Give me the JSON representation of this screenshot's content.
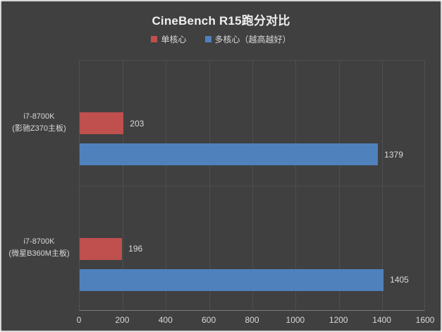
{
  "chart_data": {
    "type": "bar",
    "orientation": "horizontal",
    "title": "CineBench R15跑分对比",
    "legend_position": "top-center",
    "grid": true,
    "data_labels": true,
    "categories": [
      {
        "line1": "i7-8700K",
        "line2": "(影驰Z370主板)"
      },
      {
        "line1": "i7-8700K",
        "line2": "(微星B360M主板)"
      }
    ],
    "series": [
      {
        "name": "单核心",
        "color": "#BF504E",
        "values": [
          203,
          196
        ]
      },
      {
        "name": "多核心（越高越好）",
        "color": "#4F81BD",
        "values": [
          1379,
          1405
        ]
      }
    ],
    "xaxis": {
      "min": 0,
      "max": 1600,
      "ticks": [
        0,
        200,
        400,
        600,
        800,
        1000,
        1200,
        1400,
        1600
      ]
    }
  },
  "theme": {
    "background": "#404040",
    "frame_border": "#D6D6D6",
    "grid_line": "#4E4E4E",
    "axis_line": "#7E7E7E",
    "plot_border": "#4F4F4F",
    "text": "#D9D9D9",
    "title_color": "#EFEFEF"
  }
}
